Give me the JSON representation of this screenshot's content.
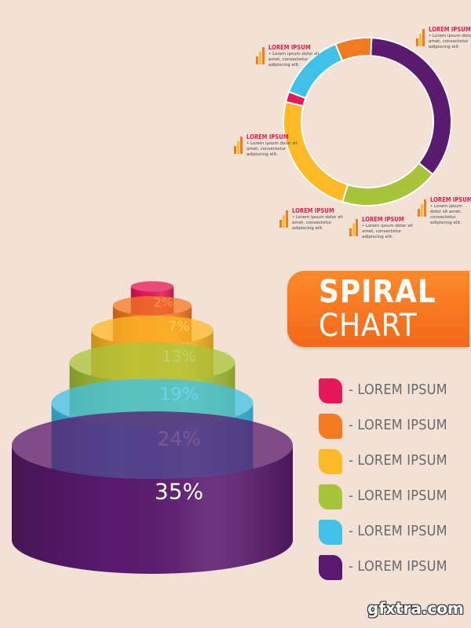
{
  "chart_data": [
    {
      "type": "spiral",
      "title": "",
      "values": [
        2,
        7,
        13,
        19,
        24,
        35
      ],
      "labels": [
        "2%",
        "7%",
        "13%",
        "19%",
        "24%",
        "35%"
      ],
      "colors": [
        "#e5195a",
        "#f47a20",
        "#fdb926",
        "#a8c43a",
        "#40c1e8",
        "#5a1a6e"
      ]
    },
    {
      "type": "pie",
      "title": "",
      "values": [
        35,
        19,
        24,
        2,
        13,
        7
      ],
      "colors": [
        "#5a1a6e",
        "#a8c43a",
        "#fdb926",
        "#e5195a",
        "#40c1e8",
        "#f47a20"
      ],
      "donut": true
    }
  ],
  "banner": {
    "line1": "SPIRAL",
    "line2": "CHART"
  },
  "legend": {
    "items": [
      {
        "label": "- LOREM IPSUM",
        "color": "#e5195a"
      },
      {
        "label": "- LOREM IPSUM",
        "color": "#f47a20"
      },
      {
        "label": "- LOREM IPSUM",
        "color": "#fdb926"
      },
      {
        "label": "- LOREM IPSUM",
        "color": "#a8c43a"
      },
      {
        "label": "- LOREM IPSUM",
        "color": "#40c1e8"
      },
      {
        "label": "- LOREM IPSUM",
        "color": "#5a1a6e"
      }
    ]
  },
  "callouts": [
    {
      "title": "LOREM IPSUM",
      "text": "• Lorem ipsum dolor sit amet, consectetur adipiscing elit."
    },
    {
      "title": "LOREM IPSUM",
      "text": "• Lorem ipsum dolor sit amet, consectetur adipiscing elit."
    },
    {
      "title": "LOREM IPSUM",
      "text": "• Lorem ipsum dolor sit amet, consectetur adipiscing elit."
    },
    {
      "title": "LOREM IPSUM",
      "text": "• Lorem ipsum dolor sit amet, consectetur adipiscing elit."
    },
    {
      "title": "LOREM IPSUM",
      "text": "• Lorem ipsum dolor sit amet, consectetur adipiscing elit."
    },
    {
      "title": "LOREM IPSUM",
      "text": "• Lorem ipsum dolor sit amet, consectetur adipiscing elit."
    }
  ],
  "watermark": "gfxtra.com"
}
